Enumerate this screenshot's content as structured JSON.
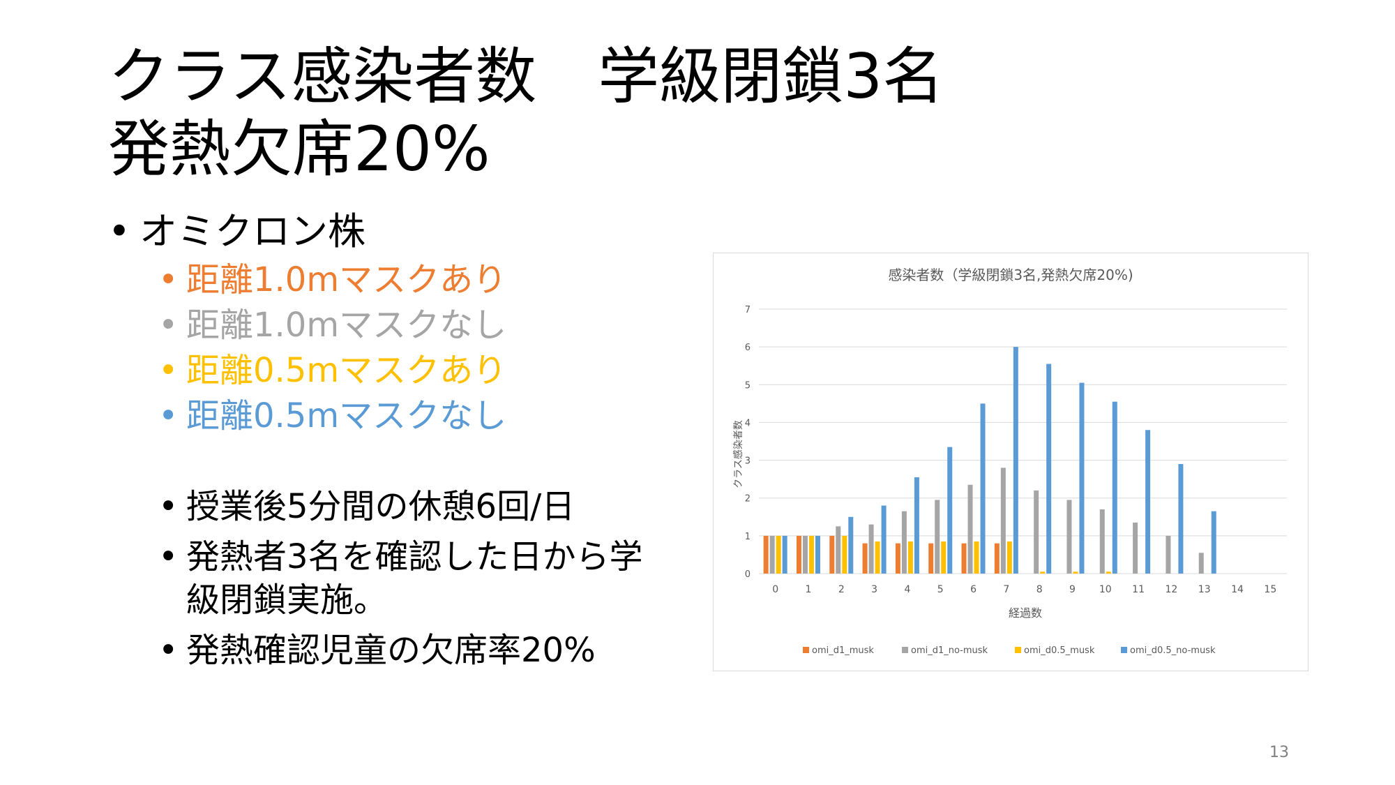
{
  "slide": {
    "title_line1": "クラス感染者数　学級閉鎖3名",
    "title_line2": "発熱欠席20%",
    "page_number": "13"
  },
  "bullets": {
    "main": "オミクロン株",
    "conditions": [
      {
        "text": "距離1.0mマスクあり",
        "color": "#ED7D31"
      },
      {
        "text": "距離1.0mマスクなし",
        "color": "#A5A5A5"
      },
      {
        "text": "距離0.5mマスクあり",
        "color": "#FFC000"
      },
      {
        "text": "距離0.5mマスクなし",
        "color": "#5B9BD5"
      }
    ],
    "notes": [
      "授業後5分間の休憩6回/日",
      "発熱者3名を確認した日から学級閉鎖実施。",
      "発熱確認児童の欠席率20%"
    ]
  },
  "chart_data": {
    "type": "bar",
    "title": "感染者数（学級閉鎖3名,発熱欠席20%)",
    "xlabel": "経過数",
    "ylabel": "クラス感染者数",
    "ylim": [
      0,
      7
    ],
    "yticks": [
      0,
      1,
      2,
      3,
      4,
      5,
      6,
      7
    ],
    "grid": true,
    "legend_position": "bottom",
    "categories": [
      "0",
      "1",
      "2",
      "3",
      "4",
      "5",
      "6",
      "7",
      "8",
      "9",
      "10",
      "11",
      "12",
      "13",
      "14",
      "15"
    ],
    "series": [
      {
        "name": "omi_d1_musk",
        "color": "#ED7D31",
        "values": [
          1,
          1,
          1,
          0.8,
          0.8,
          0.8,
          0.8,
          0.8,
          0,
          0,
          0,
          0,
          0,
          0,
          0,
          0
        ]
      },
      {
        "name": "omi_d1_no-musk",
        "color": "#A5A5A5",
        "values": [
          1,
          1,
          1.25,
          1.3,
          1.65,
          1.95,
          2.35,
          2.8,
          2.2,
          1.95,
          1.7,
          1.35,
          1.0,
          0.55,
          0,
          0
        ]
      },
      {
        "name": "omi_d0.5_musk",
        "color": "#FFC000",
        "values": [
          1,
          1,
          1.0,
          0.85,
          0.85,
          0.85,
          0.85,
          0.85,
          0.05,
          0.05,
          0.05,
          0,
          0,
          0,
          0,
          0
        ]
      },
      {
        "name": "omi_d0.5_no-musk",
        "color": "#5B9BD5",
        "values": [
          1,
          1,
          1.5,
          1.8,
          2.55,
          3.35,
          4.5,
          6.0,
          5.55,
          5.05,
          4.55,
          3.8,
          2.9,
          1.65,
          0,
          0
        ]
      }
    ]
  }
}
